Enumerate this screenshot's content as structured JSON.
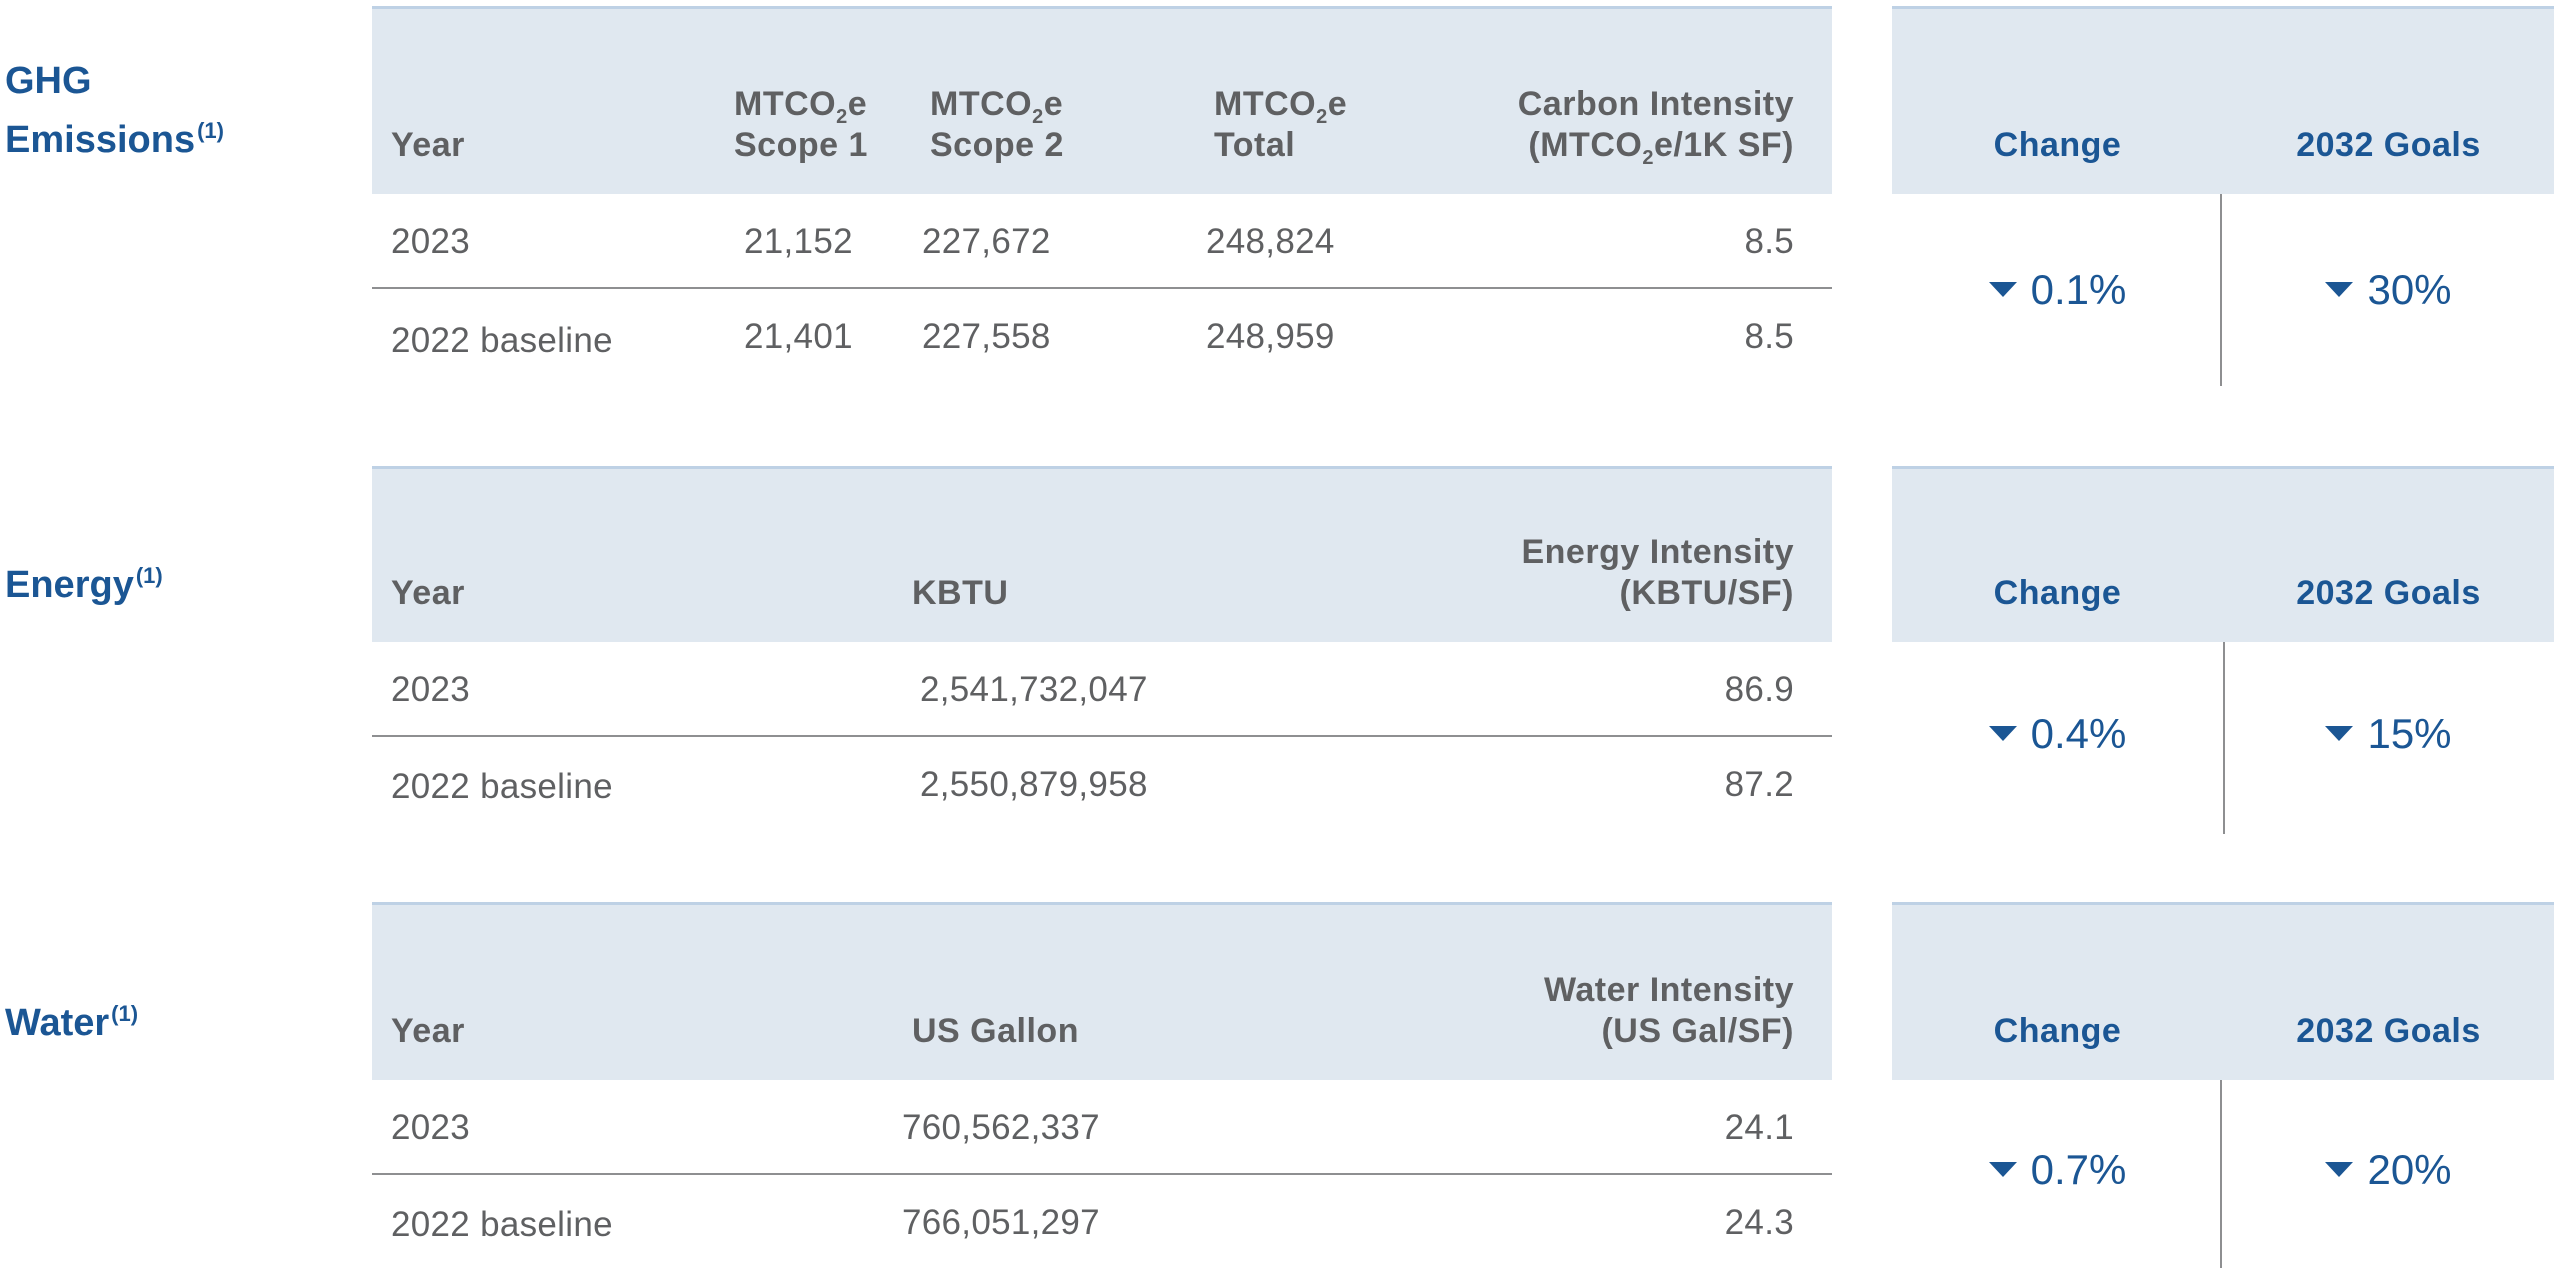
{
  "ghg": {
    "title_line1": "GHG",
    "title_line2": "Emissions",
    "footnote": "(1)",
    "headers": {
      "year": "Year",
      "scope1_a": "MTCO",
      "scope1_b": "e",
      "scope1_c": "Scope 1",
      "scope2_a": "MTCO",
      "scope2_b": "e",
      "scope2_c": "Scope 2",
      "total_a": "MTCO",
      "total_b": "e",
      "total_c": "Total",
      "intensity_a": "Carbon Intensity",
      "intensity_b": "(MTCO",
      "intensity_c": "e/1K SF)",
      "sub2": "2"
    },
    "rows": [
      {
        "year": "2023",
        "scope1": "21,152",
        "scope2": "227,672",
        "total": "248,824",
        "intensity": "8.5"
      },
      {
        "year": "2022 baseline",
        "scope1": "21,401",
        "scope2": "227,558",
        "total": "248,959",
        "intensity": "8.5"
      }
    ],
    "change_label": "Change",
    "goals_label": "2032 Goals",
    "change_value": "0.1%",
    "goal_value": "30%"
  },
  "energy": {
    "title": "Energy",
    "footnote": "(1)",
    "headers": {
      "year": "Year",
      "kbtu": "KBTU",
      "intensity_a": "Energy Intensity",
      "intensity_b": "(KBTU/SF)"
    },
    "rows": [
      {
        "year": "2023",
        "kbtu": "2,541,732,047",
        "intensity": "86.9"
      },
      {
        "year": "2022 baseline",
        "kbtu": "2,550,879,958",
        "intensity": "87.2"
      }
    ],
    "change_label": "Change",
    "goals_label": "2032 Goals",
    "change_value": "0.4%",
    "goal_value": "15%"
  },
  "water": {
    "title": "Water",
    "footnote": "(1)",
    "headers": {
      "year": "Year",
      "gallon": "US Gallon",
      "intensity_a": "Water Intensity",
      "intensity_b": "(US Gal/SF)"
    },
    "rows": [
      {
        "year": "2023",
        "gallon": "760,562,337",
        "intensity": "24.1"
      },
      {
        "year": "2022 baseline",
        "gallon": "766,051,297",
        "intensity": "24.3"
      }
    ],
    "change_label": "Change",
    "goals_label": "2032 Goals",
    "change_value": "0.7%",
    "goal_value": "20%"
  },
  "colors": {
    "accent_blue": "#1b5694",
    "header_fill": "#e0e8f0",
    "header_rule": "#bed1e5",
    "text_gray": "#5f6062"
  },
  "icons": {
    "decrease": "down-triangle-icon"
  }
}
